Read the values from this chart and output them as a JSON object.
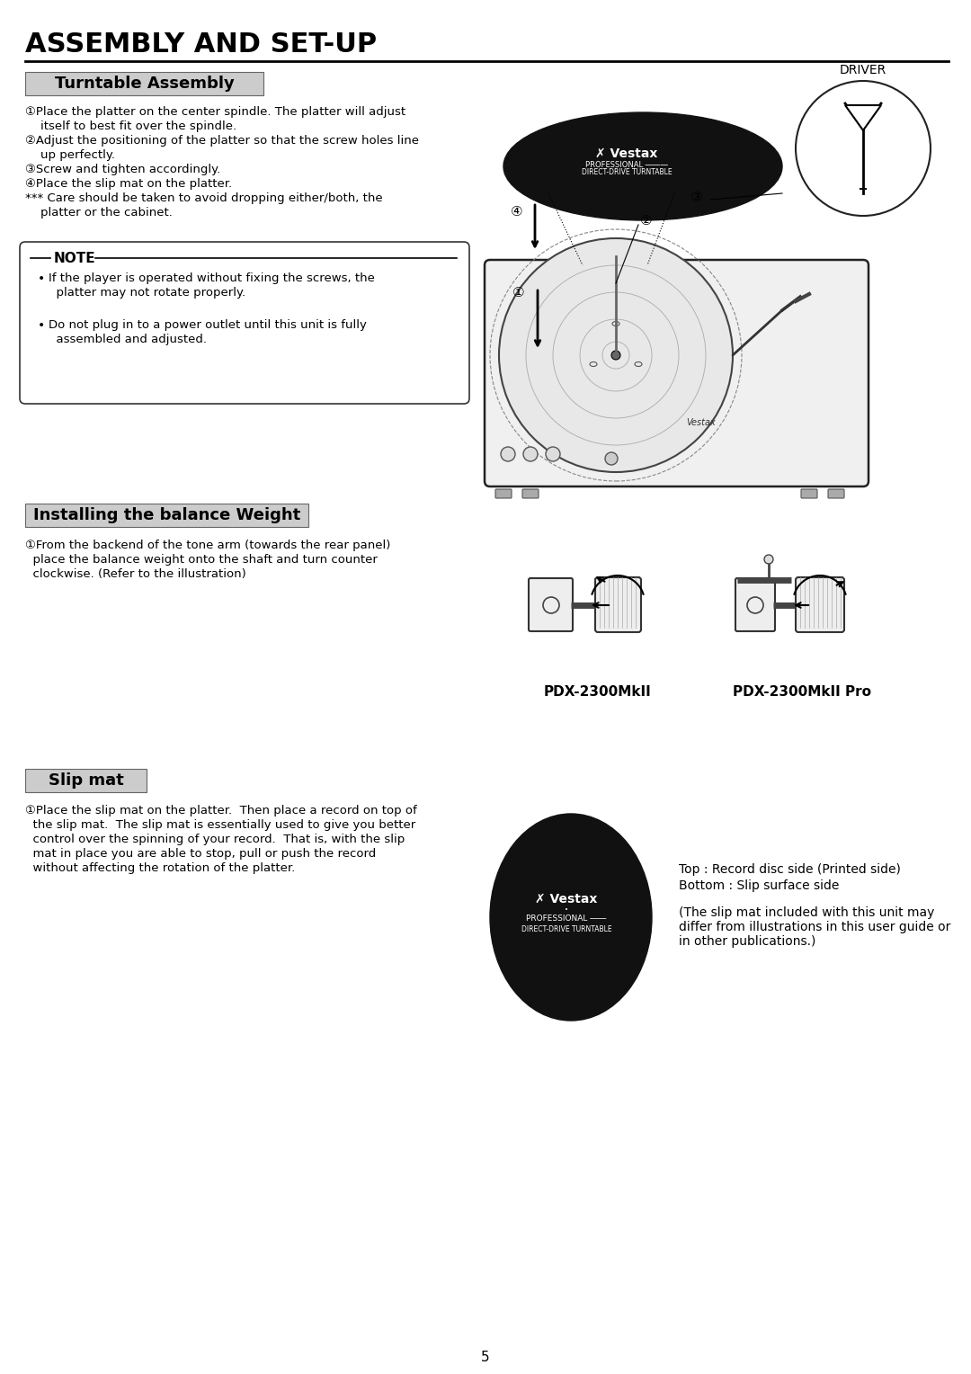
{
  "page_bg": "#ffffff",
  "page_title": "ASSEMBLY AND SET-UP",
  "page_number": "5",
  "section1_title": "Turntable Assembly",
  "section1_title_bg": "#cccccc",
  "section1_steps": [
    [
      "①",
      "Place the platter on the center spindle. The platter will adjust",
      "    itself to best fit over the spindle."
    ],
    [
      "②",
      "Adjust the positioning of the platter so that the screw holes line",
      "    up perfectly."
    ],
    [
      "③",
      "Screw and tighten accordingly."
    ],
    [
      "④",
      "Place the slip mat on the platter."
    ],
    [
      "***",
      " Care should be taken to avoid dropping either/both, the",
      "    platter or the cabinet."
    ]
  ],
  "note_title": "NOTE",
  "note_bullets": [
    [
      "If the player is operated without fixing the screws, the",
      "  platter may not rotate properly."
    ],
    [
      "Do not plug in to a power outlet until this unit is fully",
      "  assembled and adjusted."
    ]
  ],
  "section2_title": "Installing the balance Weight",
  "section2_title_bg": "#cccccc",
  "section2_steps": [
    [
      "①",
      "From the backend of the tone arm (towards the rear panel)",
      "  place the balance weight onto the shaft and turn counter",
      "  clockwise. (Refer to the illustration)"
    ]
  ],
  "section2_labels": [
    "PDX-2300MkII",
    "PDX-2300MkII Pro"
  ],
  "section3_title": "Slip mat",
  "section3_title_bg": "#cccccc",
  "section3_steps": [
    [
      "①",
      "Place the slip mat on the platter.  Then place a record on top of",
      "  the slip mat.  The slip mat is essentially used to give you better",
      "  control over the spinning of your record.  That is, with the slip",
      "  mat in place you are able to stop, pull or push the record",
      "  without affecting the rotation of the platter."
    ]
  ],
  "section3_note1": "Top : Record disc side (Printed side)",
  "section3_note2": "Bottom : Slip surface side",
  "section3_note3": "(The slip mat included with this unit may\ndiffer from illustrations in this user guide or\nin other publications.)"
}
